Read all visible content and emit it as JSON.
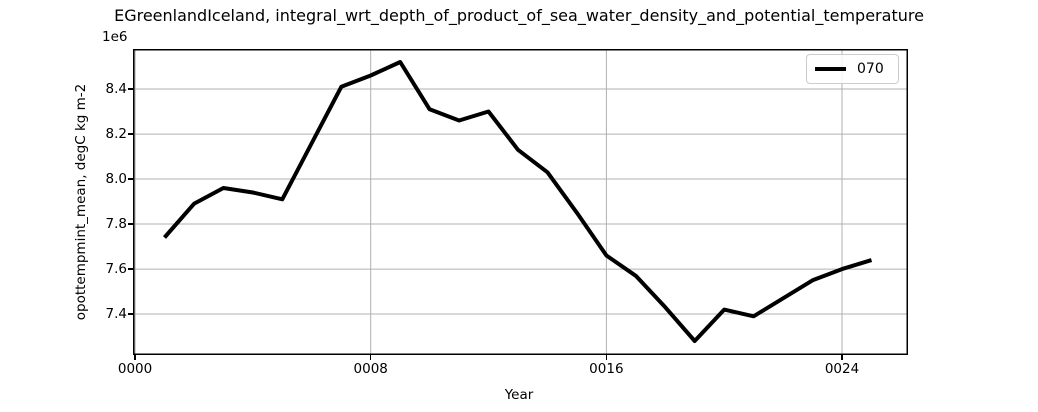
{
  "colors": {
    "background": "#ffffff",
    "line": "#000000",
    "grid": "#b0b0b0",
    "spine": "#000000",
    "legend_border": "#cccccc",
    "text": "#000000"
  },
  "chart_data": {
    "type": "line",
    "title": "EGreenlandIceland, integral_wrt_depth_of_product_of_sea_water_density_and_potential_temperature",
    "xlabel": "Year",
    "ylabel": "opottempmint_mean, degC kg m-2",
    "y_offset_label": "1e6",
    "grid": true,
    "legend_position": "upper right",
    "x": [
      1,
      2,
      3,
      4,
      5,
      6,
      7,
      8,
      9,
      10,
      11,
      12,
      13,
      14,
      15,
      16,
      17,
      18,
      19,
      20,
      21,
      22,
      23,
      24,
      25
    ],
    "series": [
      {
        "name": "070",
        "color": "#000000",
        "values_1e6": [
          7.74,
          7.89,
          7.96,
          7.94,
          7.91,
          8.16,
          8.41,
          8.46,
          8.52,
          8.31,
          8.26,
          8.3,
          8.13,
          8.03,
          7.85,
          7.66,
          7.57,
          7.43,
          7.28,
          7.42,
          7.39,
          7.47,
          7.55,
          7.6,
          7.64
        ]
      }
    ],
    "xticks": [
      {
        "value": 0,
        "label": "0000"
      },
      {
        "value": 8,
        "label": "0008"
      },
      {
        "value": 16,
        "label": "0016"
      },
      {
        "value": 24,
        "label": "0024"
      }
    ],
    "yticks": [
      {
        "value": 7.4,
        "label": "7.4"
      },
      {
        "value": 7.6,
        "label": "7.6"
      },
      {
        "value": 7.8,
        "label": "7.8"
      },
      {
        "value": 8.0,
        "label": "8.0"
      },
      {
        "value": 8.2,
        "label": "8.2"
      },
      {
        "value": 8.4,
        "label": "8.4"
      }
    ],
    "xlim": [
      -0.07,
      26.24
    ],
    "ylim": [
      7.218,
      8.578
    ]
  }
}
